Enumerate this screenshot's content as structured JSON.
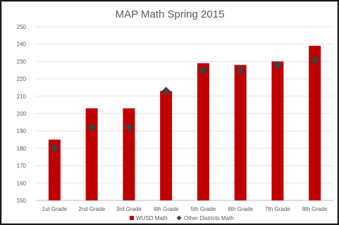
{
  "chart_data": {
    "type": "bar",
    "title": "MAP Math Spring 2015",
    "categories": [
      "1st Grade",
      "2nd Grade",
      "3rd Grade",
      "4th Grade",
      "5th Grade",
      "6th Grade",
      "7th Grade",
      "8th Grade"
    ],
    "series": [
      {
        "name": "WUSD Math",
        "kind": "bar",
        "color": "#c00000",
        "values": [
          185,
          203,
          203,
          213,
          229,
          228,
          230,
          239
        ]
      },
      {
        "name": "Other Districts Math",
        "kind": "marker",
        "marker": "diamond",
        "color": "#404040",
        "values": [
          180,
          192,
          192,
          213,
          225,
          225,
          228,
          231
        ]
      }
    ],
    "ylim": [
      150,
      250
    ],
    "yticks": [
      150,
      160,
      170,
      180,
      190,
      200,
      210,
      220,
      230,
      240,
      250
    ],
    "grid": true,
    "legend": "bottom"
  }
}
